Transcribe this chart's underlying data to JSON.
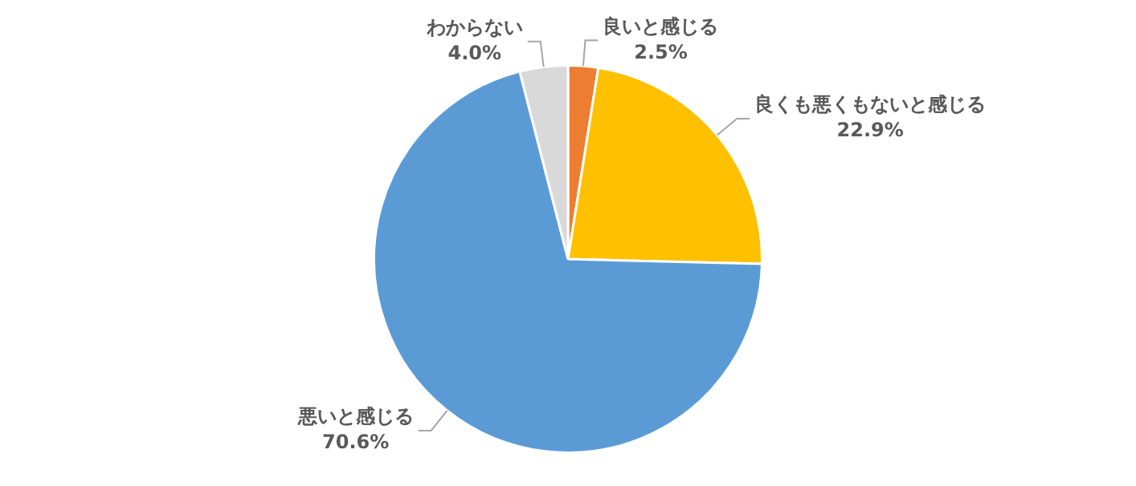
{
  "chart_data": {
    "type": "pie",
    "categories": [
      "良いと感じる",
      "良くも悪くもないと感じる",
      "悪いと感じる",
      "わからない"
    ],
    "values": [
      2.5,
      22.9,
      70.6,
      4.0
    ],
    "colors": [
      "#ed7d31",
      "#ffc000",
      "#5b9bd5",
      "#d9d9d9"
    ],
    "value_labels": [
      "2.5%",
      "22.9%",
      "70.6%",
      "4.0%"
    ],
    "legend": false
  }
}
